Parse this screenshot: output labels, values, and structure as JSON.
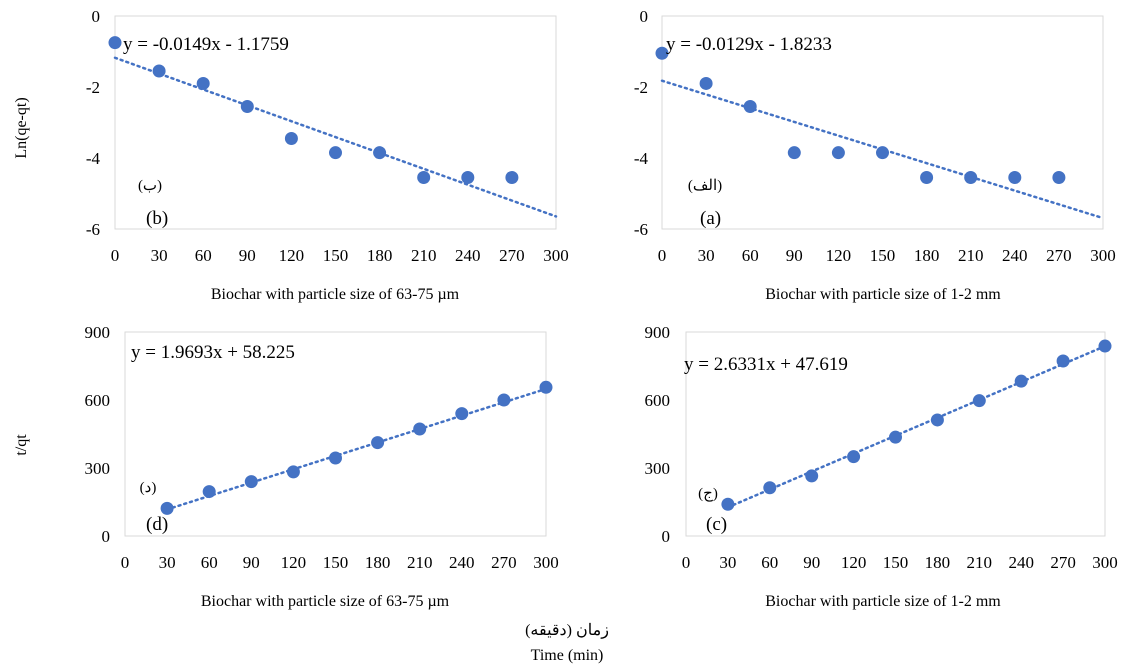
{
  "figure": {
    "left_ylabel_top": "Ln(qe-qt)",
    "left_ylabel_bottom": "t/qt",
    "footer_fa": "زمان (دقیقه)",
    "footer_en": "Time (min)"
  },
  "chart_data": [
    {
      "type": "scatter",
      "panel": "b",
      "xlabel": "Biochar with particle size of 63-75 µm",
      "ylabel": "Ln(qe-qt)",
      "xticks": [
        0,
        30,
        60,
        90,
        120,
        150,
        180,
        210,
        240,
        270,
        300
      ],
      "yticks": [
        0,
        -2,
        -4,
        -6
      ],
      "xlim": [
        0,
        300
      ],
      "ylim": [
        -6,
        0
      ],
      "grid": false,
      "series": [
        {
          "x": [
            0,
            30,
            60,
            90,
            120,
            150,
            180,
            210,
            240,
            270
          ],
          "y": [
            -0.75,
            -1.55,
            -1.9,
            -2.55,
            -3.45,
            -3.85,
            -3.85,
            -4.55,
            -4.55,
            -4.55
          ]
        }
      ],
      "trendline": {
        "slope": -0.0149,
        "intercept": -1.1759
      },
      "equation": "y = -0.0149x - 1.1759",
      "label_fa": "(ب)",
      "label_en": "(b)"
    },
    {
      "type": "scatter",
      "panel": "a",
      "xlabel": "Biochar with particle size of 1-2 mm",
      "ylabel": "",
      "xticks": [
        0,
        30,
        60,
        90,
        120,
        150,
        180,
        210,
        240,
        270,
        300
      ],
      "yticks": [
        0,
        -2,
        -4,
        -6
      ],
      "xlim": [
        0,
        300
      ],
      "ylim": [
        -6,
        0
      ],
      "grid": false,
      "series": [
        {
          "x": [
            0,
            30,
            60,
            90,
            120,
            150,
            180,
            210,
            240,
            270
          ],
          "y": [
            -1.05,
            -1.9,
            -2.55,
            -3.85,
            -3.85,
            -3.85,
            -4.55,
            -4.55,
            -4.55,
            -4.55
          ]
        }
      ],
      "trendline": {
        "slope": -0.0129,
        "intercept": -1.8233
      },
      "equation": "y = -0.0129x - 1.8233",
      "label_fa": "(الف)",
      "label_en": "(a)"
    },
    {
      "type": "scatter",
      "panel": "d",
      "xlabel": "Biochar with particle size of 63-75 µm",
      "ylabel": "t/qt",
      "xticks": [
        0,
        30,
        60,
        90,
        120,
        150,
        180,
        210,
        240,
        270,
        300
      ],
      "yticks": [
        0,
        300,
        600,
        900
      ],
      "xlim": [
        0,
        300
      ],
      "ylim": [
        0,
        900
      ],
      "grid": false,
      "series": [
        {
          "x": [
            30,
            60,
            90,
            120,
            150,
            180,
            210,
            240,
            270,
            300
          ],
          "y": [
            122,
            196,
            240,
            283,
            344,
            412,
            472,
            540,
            600,
            656
          ]
        }
      ],
      "trendline": {
        "slope": 1.9693,
        "intercept": 58.225,
        "x_from": 30
      },
      "equation": "y = 1.9693x + 58.225",
      "label_fa": "(د)",
      "label_en": "(d)"
    },
    {
      "type": "scatter",
      "panel": "c",
      "xlabel": "Biochar with particle size of 1-2 mm",
      "ylabel": "",
      "xticks": [
        0,
        30,
        60,
        90,
        120,
        150,
        180,
        210,
        240,
        270,
        300
      ],
      "yticks": [
        0,
        300,
        600,
        900
      ],
      "xlim": [
        0,
        300
      ],
      "ylim": [
        0,
        900
      ],
      "grid": false,
      "series": [
        {
          "x": [
            30,
            60,
            90,
            120,
            150,
            180,
            210,
            240,
            270,
            300
          ],
          "y": [
            140,
            213,
            265,
            350,
            436,
            512,
            597,
            683,
            772,
            838
          ]
        }
      ],
      "trendline": {
        "slope": 2.6331,
        "intercept": 47.619,
        "x_from": 30
      },
      "equation": "y = 2.6331x + 47.619",
      "label_fa": "(ج)",
      "label_en": "(c)"
    }
  ],
  "style": {
    "marker_color": "#4472C4",
    "trendline_color": "#4472C4",
    "plot_border": "#d9d9d9"
  }
}
